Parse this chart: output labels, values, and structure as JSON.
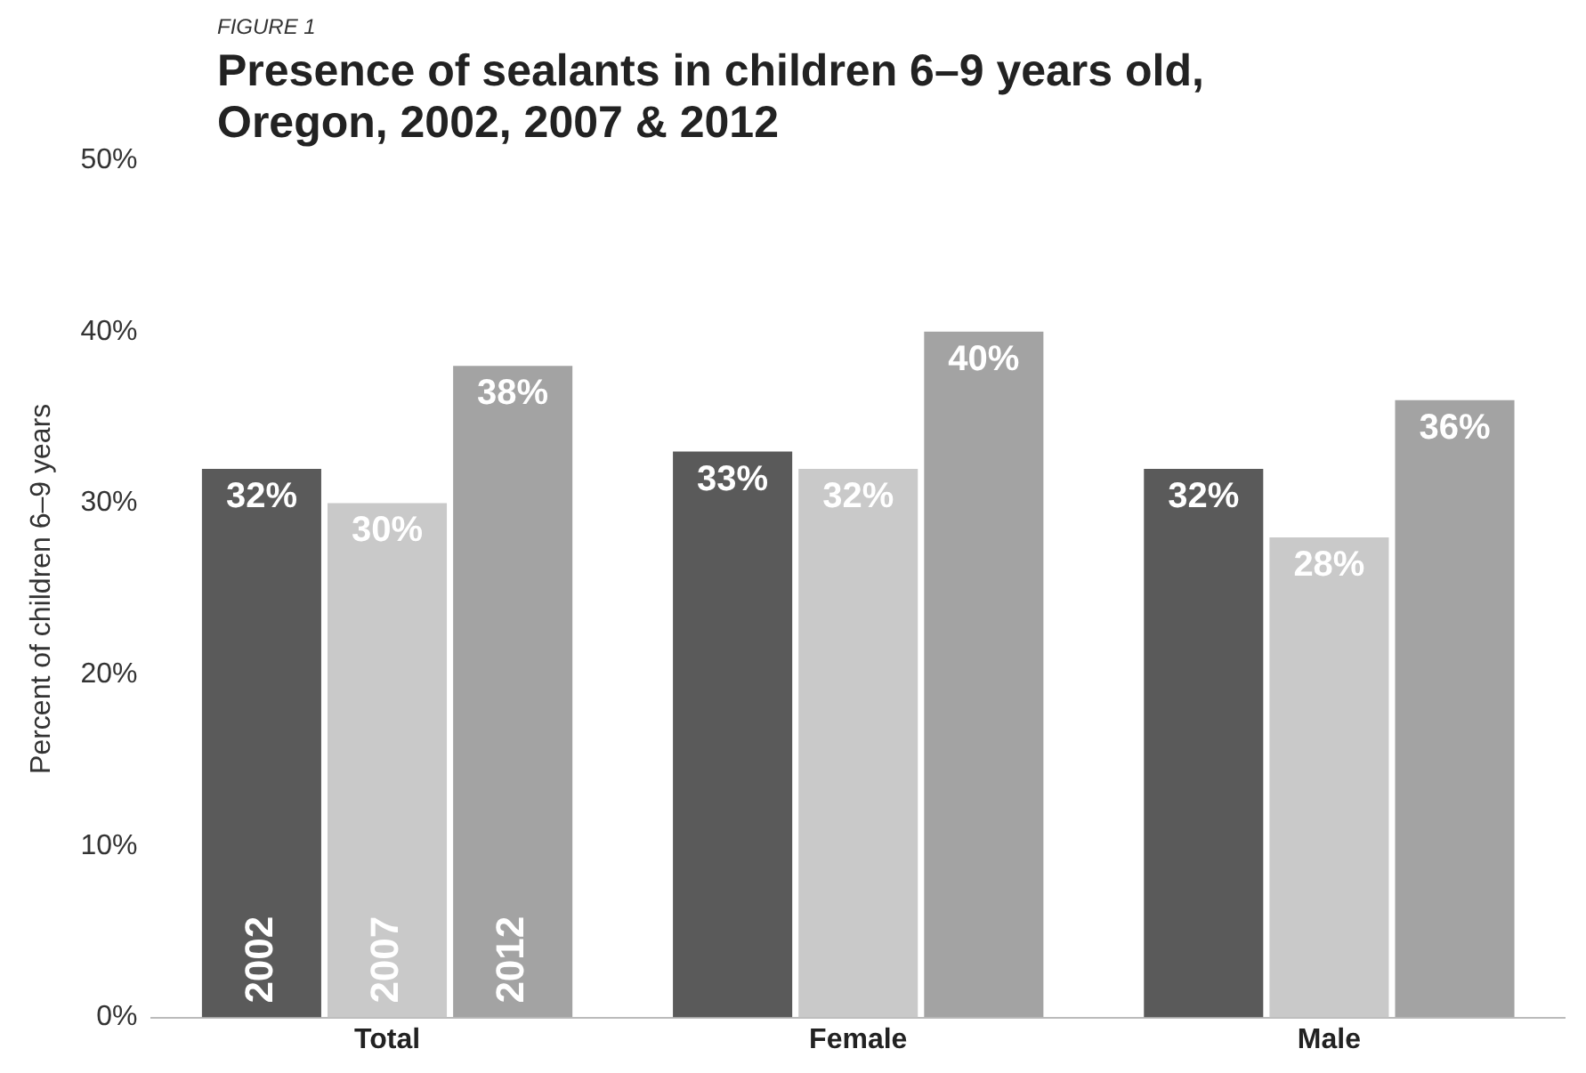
{
  "chart_data": {
    "type": "bar",
    "title": "Presence of sealants in children 6–9 years old, Oregon, 2002, 2007 & 2012",
    "subtitle": "FIGURE 1",
    "ylabel": "Percent of children 6–9 years",
    "categories": [
      "Total",
      "Female",
      "Male"
    ],
    "series": [
      {
        "name": "2002",
        "color": "#5a5a5a",
        "values": [
          32,
          33,
          32
        ],
        "value_labels": [
          "32%",
          "33%",
          "32%"
        ]
      },
      {
        "name": "2007",
        "color": "#c9c9c9",
        "values": [
          30,
          32,
          28
        ],
        "value_labels": [
          "30%",
          "32%",
          "28%"
        ]
      },
      {
        "name": "2012",
        "color": "#a3a3a3",
        "values": [
          38,
          40,
          36
        ],
        "value_labels": [
          "38%",
          "40%",
          "36%"
        ]
      }
    ],
    "ylim": [
      0,
      50
    ],
    "yticks": [
      {
        "value": 0,
        "label": "0%"
      },
      {
        "value": 10,
        "label": "10%"
      },
      {
        "value": 20,
        "label": "20%"
      },
      {
        "value": 30,
        "label": "30%"
      },
      {
        "value": 40,
        "label": "40%"
      },
      {
        "value": 50,
        "label": "50%"
      }
    ],
    "grid": false,
    "legend": false
  }
}
